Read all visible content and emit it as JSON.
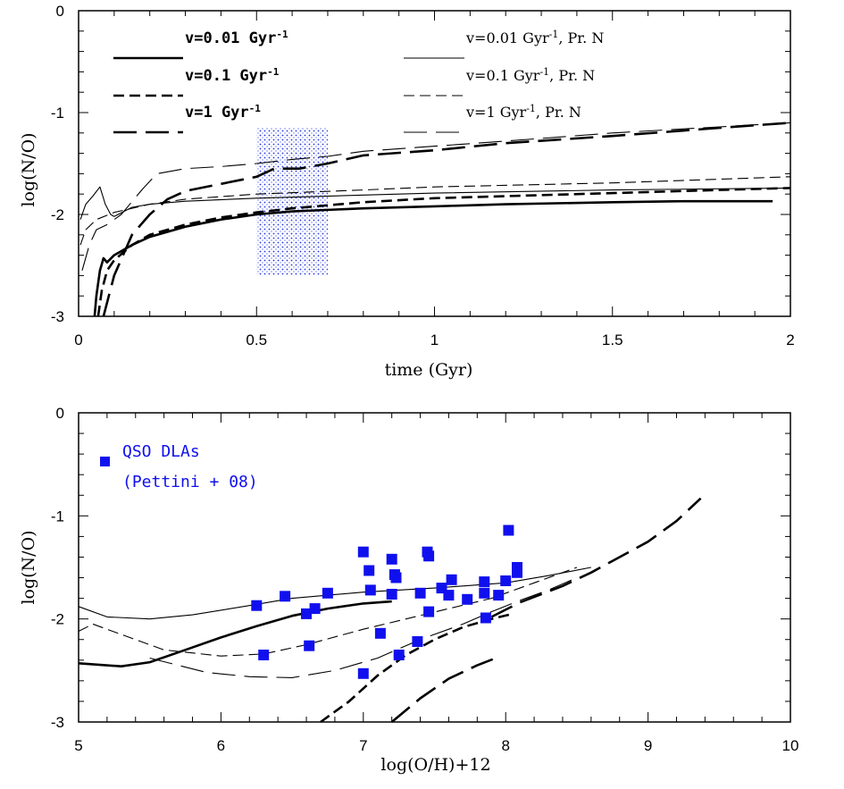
{
  "chart_data": [
    {
      "type": "line",
      "panel": "top",
      "xlabel": "time (Gyr)",
      "ylabel": "log(N/O)",
      "xlim": [
        0,
        2
      ],
      "ylim": [
        -3,
        0
      ],
      "x_ticks": [
        "0",
        "0.5",
        "1",
        "1.5",
        "2"
      ],
      "y_ticks": [
        "0",
        "-1",
        "-2",
        "-3"
      ],
      "shaded_region": {
        "x": [
          0.5,
          0.7
        ],
        "y": [
          -2.6,
          -1.15
        ],
        "pattern": "blue dotted"
      },
      "legend": [
        {
          "text": "v=0.01 Gyr",
          "sup": "-1",
          "suffix": "",
          "dash": "solid",
          "weight": "thick"
        },
        {
          "text": "v=0.1 Gyr",
          "sup": "-1",
          "suffix": "",
          "dash": "short-dash",
          "weight": "thick"
        },
        {
          "text": "v=1 Gyr",
          "sup": "-1",
          "suffix": "",
          "dash": "long-dash",
          "weight": "thick"
        },
        {
          "text": "v=0.01 Gyr",
          "sup": "-1",
          "suffix": ", Pr. N",
          "dash": "solid",
          "weight": "thin"
        },
        {
          "text": "v=0.1 Gyr",
          "sup": "-1",
          "suffix": ", Pr. N",
          "dash": "short-dash",
          "weight": "thin"
        },
        {
          "text": "v=1 Gyr",
          "sup": "-1",
          "suffix": ", Pr. N",
          "dash": "long-dash",
          "weight": "thin"
        }
      ],
      "series": [
        {
          "dash": "solid",
          "weight": "thick",
          "points": [
            [
              0.045,
              -3.0
            ],
            [
              0.05,
              -2.8
            ],
            [
              0.06,
              -2.55
            ],
            [
              0.07,
              -2.43
            ],
            [
              0.08,
              -2.47
            ],
            [
              0.1,
              -2.4
            ],
            [
              0.15,
              -2.3
            ],
            [
              0.2,
              -2.22
            ],
            [
              0.3,
              -2.12
            ],
            [
              0.4,
              -2.05
            ],
            [
              0.5,
              -2.0
            ],
            [
              0.6,
              -1.97
            ],
            [
              0.8,
              -1.94
            ],
            [
              1.0,
              -1.92
            ],
            [
              1.2,
              -1.9
            ],
            [
              1.5,
              -1.88
            ],
            [
              1.7,
              -1.87
            ],
            [
              1.95,
              -1.87
            ]
          ]
        },
        {
          "dash": "short-dash",
          "weight": "thick",
          "points": [
            [
              0.055,
              -3.0
            ],
            [
              0.065,
              -2.75
            ],
            [
              0.08,
              -2.55
            ],
            [
              0.1,
              -2.45
            ],
            [
              0.15,
              -2.3
            ],
            [
              0.2,
              -2.2
            ],
            [
              0.3,
              -2.1
            ],
            [
              0.4,
              -2.03
            ],
            [
              0.5,
              -1.98
            ],
            [
              0.6,
              -1.94
            ],
            [
              0.8,
              -1.88
            ],
            [
              1.0,
              -1.84
            ],
            [
              1.2,
              -1.82
            ],
            [
              1.5,
              -1.79
            ],
            [
              1.8,
              -1.76
            ],
            [
              2.0,
              -1.74
            ]
          ]
        },
        {
          "dash": "long-dash",
          "weight": "thick",
          "points": [
            [
              0.07,
              -3.0
            ],
            [
              0.1,
              -2.6
            ],
            [
              0.15,
              -2.2
            ],
            [
              0.2,
              -2.0
            ],
            [
              0.25,
              -1.85
            ],
            [
              0.3,
              -1.77
            ],
            [
              0.4,
              -1.7
            ],
            [
              0.5,
              -1.63
            ],
            [
              0.55,
              -1.55
            ],
            [
              0.62,
              -1.55
            ],
            [
              0.7,
              -1.5
            ],
            [
              0.8,
              -1.42
            ],
            [
              1.0,
              -1.37
            ],
            [
              1.2,
              -1.3
            ],
            [
              1.5,
              -1.23
            ],
            [
              1.8,
              -1.15
            ],
            [
              2.0,
              -1.1
            ]
          ]
        },
        {
          "dash": "solid",
          "weight": "thin",
          "points": [
            [
              0.005,
              -2.05
            ],
            [
              0.02,
              -1.9
            ],
            [
              0.04,
              -1.82
            ],
            [
              0.06,
              -1.73
            ],
            [
              0.075,
              -1.9
            ],
            [
              0.09,
              -2.0
            ],
            [
              0.1,
              -2.02
            ],
            [
              0.15,
              -1.93
            ],
            [
              0.2,
              -1.9
            ],
            [
              0.3,
              -1.87
            ],
            [
              0.5,
              -1.84
            ],
            [
              0.8,
              -1.81
            ],
            [
              1.0,
              -1.79
            ],
            [
              1.5,
              -1.76
            ],
            [
              2.0,
              -1.74
            ]
          ]
        },
        {
          "dash": "short-dash",
          "weight": "thin",
          "points": [
            [
              0.005,
              -2.3
            ],
            [
              0.02,
              -2.15
            ],
            [
              0.05,
              -2.05
            ],
            [
              0.1,
              -1.98
            ],
            [
              0.2,
              -1.9
            ],
            [
              0.3,
              -1.85
            ],
            [
              0.5,
              -1.8
            ],
            [
              0.8,
              -1.76
            ],
            [
              1.0,
              -1.73
            ],
            [
              1.5,
              -1.69
            ],
            [
              2.0,
              -1.63
            ]
          ]
        },
        {
          "dash": "long-dash",
          "weight": "thin",
          "points": [
            [
              0.01,
              -2.55
            ],
            [
              0.03,
              -2.3
            ],
            [
              0.05,
              -2.15
            ],
            [
              0.08,
              -2.1
            ],
            [
              0.12,
              -2.0
            ],
            [
              0.18,
              -1.75
            ],
            [
              0.22,
              -1.6
            ],
            [
              0.3,
              -1.55
            ],
            [
              0.4,
              -1.53
            ],
            [
              0.5,
              -1.5
            ],
            [
              0.6,
              -1.46
            ],
            [
              0.7,
              -1.43
            ],
            [
              0.8,
              -1.38
            ],
            [
              1.0,
              -1.33
            ],
            [
              1.2,
              -1.28
            ],
            [
              1.5,
              -1.2
            ],
            [
              1.8,
              -1.14
            ],
            [
              2.0,
              -1.1
            ]
          ]
        }
      ]
    },
    {
      "type": "scatter",
      "panel": "bottom",
      "xlabel": "log(O/H)+12",
      "ylabel": "log(N/O)",
      "xlim": [
        5,
        10
      ],
      "ylim": [
        -3,
        0
      ],
      "x_ticks": [
        "5",
        "6",
        "7",
        "8",
        "9",
        "10"
      ],
      "y_ticks": [
        "0",
        "-1",
        "-2",
        "-3"
      ],
      "legend_lines": [
        "QSO DLAs",
        "(Pettini + 08)"
      ],
      "marker_color": "#1010ee",
      "points": [
        [
          6.25,
          -1.87
        ],
        [
          6.3,
          -2.35
        ],
        [
          6.45,
          -1.78
        ],
        [
          6.6,
          -1.95
        ],
        [
          6.62,
          -2.26
        ],
        [
          6.66,
          -1.9
        ],
        [
          6.75,
          -1.75
        ],
        [
          7.0,
          -1.35
        ],
        [
          7.0,
          -2.53
        ],
        [
          7.04,
          -1.53
        ],
        [
          7.05,
          -1.72
        ],
        [
          7.12,
          -2.14
        ],
        [
          7.2,
          -1.76
        ],
        [
          7.2,
          -1.42
        ],
        [
          7.22,
          -1.57
        ],
        [
          7.23,
          -1.6
        ],
        [
          7.25,
          -2.35
        ],
        [
          7.38,
          -2.22
        ],
        [
          7.4,
          -1.75
        ],
        [
          7.45,
          -1.35
        ],
        [
          7.46,
          -1.39
        ],
        [
          7.46,
          -1.93
        ],
        [
          7.55,
          -1.7
        ],
        [
          7.6,
          -1.77
        ],
        [
          7.62,
          -1.62
        ],
        [
          7.73,
          -1.81
        ],
        [
          7.85,
          -1.75
        ],
        [
          7.85,
          -1.64
        ],
        [
          7.86,
          -1.99
        ],
        [
          7.95,
          -1.77
        ],
        [
          8.0,
          -1.63
        ],
        [
          8.02,
          -1.14
        ],
        [
          8.08,
          -1.5
        ],
        [
          8.08,
          -1.55
        ]
      ],
      "series": [
        {
          "dash": "solid",
          "weight": "thick",
          "points": [
            [
              5.0,
              -2.43
            ],
            [
              5.3,
              -2.46
            ],
            [
              5.5,
              -2.42
            ],
            [
              5.75,
              -2.3
            ],
            [
              6.0,
              -2.18
            ],
            [
              6.25,
              -2.07
            ],
            [
              6.5,
              -1.97
            ],
            [
              6.75,
              -1.9
            ],
            [
              7.0,
              -1.85
            ],
            [
              7.2,
              -1.83
            ]
          ]
        },
        {
          "dash": "short-dash",
          "weight": "thick",
          "points": [
            [
              6.7,
              -3.0
            ],
            [
              6.9,
              -2.8
            ],
            [
              7.1,
              -2.55
            ],
            [
              7.3,
              -2.35
            ],
            [
              7.5,
              -2.2
            ],
            [
              7.7,
              -2.08
            ],
            [
              7.9,
              -2.0
            ],
            [
              8.05,
              -1.95
            ]
          ]
        },
        {
          "dash": "long-dash",
          "weight": "thick",
          "points": [
            [
              7.2,
              -3.0
            ],
            [
              7.4,
              -2.77
            ],
            [
              7.6,
              -2.58
            ],
            [
              7.8,
              -2.45
            ],
            [
              7.95,
              -2.37
            ]
          ]
        },
        {
          "dash": "long-dash",
          "weight": "thick",
          "points": [
            [
              7.9,
              -1.98
            ],
            [
              8.1,
              -1.84
            ],
            [
              8.4,
              -1.68
            ],
            [
              8.6,
              -1.55
            ],
            [
              8.8,
              -1.4
            ],
            [
              9.0,
              -1.25
            ],
            [
              9.2,
              -1.05
            ],
            [
              9.37,
              -0.83
            ]
          ]
        },
        {
          "dash": "solid",
          "weight": "thin",
          "points": [
            [
              5.0,
              -1.88
            ],
            [
              5.2,
              -1.98
            ],
            [
              5.5,
              -2.0
            ],
            [
              5.8,
              -1.96
            ],
            [
              6.2,
              -1.87
            ],
            [
              6.5,
              -1.8
            ],
            [
              7.0,
              -1.74
            ],
            [
              7.5,
              -1.7
            ],
            [
              8.0,
              -1.65
            ],
            [
              8.3,
              -1.58
            ],
            [
              8.6,
              -1.5
            ]
          ]
        },
        {
          "dash": "short-dash",
          "weight": "thin",
          "points": [
            [
              5.0,
              -2.12
            ],
            [
              5.1,
              -2.05
            ],
            [
              5.3,
              -2.15
            ],
            [
              5.6,
              -2.3
            ],
            [
              6.0,
              -2.36
            ],
            [
              6.3,
              -2.34
            ],
            [
              6.6,
              -2.25
            ],
            [
              7.0,
              -2.1
            ],
            [
              7.3,
              -2.0
            ],
            [
              7.6,
              -1.9
            ],
            [
              7.9,
              -1.8
            ],
            [
              8.2,
              -1.65
            ],
            [
              8.5,
              -1.5
            ]
          ]
        },
        {
          "dash": "long-dash",
          "weight": "thin",
          "points": [
            [
              5.5,
              -2.38
            ],
            [
              5.9,
              -2.52
            ],
            [
              6.2,
              -2.56
            ],
            [
              6.5,
              -2.57
            ],
            [
              6.8,
              -2.5
            ],
            [
              7.1,
              -2.38
            ],
            [
              7.4,
              -2.2
            ],
            [
              7.7,
              -2.05
            ],
            [
              7.9,
              -1.93
            ],
            [
              8.1,
              -1.82
            ],
            [
              8.3,
              -1.72
            ],
            [
              8.5,
              -1.6
            ]
          ]
        }
      ]
    }
  ]
}
